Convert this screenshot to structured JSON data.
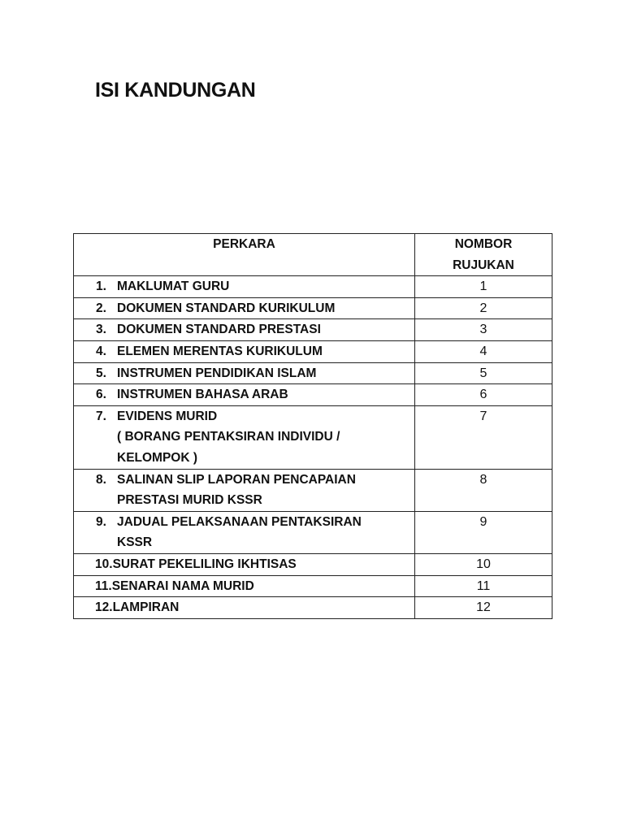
{
  "title": "ISI KANDUNGAN",
  "table": {
    "headers": {
      "item": "PERKARA",
      "ref_line1": "NOMBOR",
      "ref_line2": "RUJUKAN"
    },
    "rows": [
      {
        "no": "1.",
        "lines": [
          "MAKLUMAT GURU"
        ],
        "ref": "1"
      },
      {
        "no": "2.",
        "lines": [
          "DOKUMEN STANDARD KURIKULUM"
        ],
        "ref": "2"
      },
      {
        "no": "3.",
        "lines": [
          "DOKUMEN STANDARD PRESTASI"
        ],
        "ref": "3"
      },
      {
        "no": "4.",
        "lines": [
          "ELEMEN MERENTAS KURIKULUM"
        ],
        "ref": "4"
      },
      {
        "no": "5.",
        "lines": [
          "INSTRUMEN PENDIDIKAN ISLAM"
        ],
        "ref": "5"
      },
      {
        "no": "6.",
        "lines": [
          "INSTRUMEN BAHASA ARAB"
        ],
        "ref": "6"
      },
      {
        "no": "7.",
        "lines": [
          "EVIDENS MURID",
          "( BORANG PENTAKSIRAN INDIVIDU /",
          "KELOMPOK )"
        ],
        "ref": "7"
      },
      {
        "no": "8.",
        "lines": [
          "SALINAN SLIP LAPORAN PENCAPAIAN",
          "PRESTASI MURID KSSR"
        ],
        "ref": "8"
      },
      {
        "no": "9.",
        "lines": [
          "JADUAL PELAKSANAAN PENTAKSIRAN",
          "KSSR"
        ],
        "ref": "9"
      },
      {
        "no": "10.",
        "lines": [
          "SURAT PEKELILING IKHTISAS"
        ],
        "ref": "10"
      },
      {
        "no": "11.",
        "lines": [
          "SENARAI NAMA MURID"
        ],
        "ref": "11"
      },
      {
        "no": "12.",
        "lines": [
          "LAMPIRAN"
        ],
        "ref": "12"
      }
    ]
  }
}
